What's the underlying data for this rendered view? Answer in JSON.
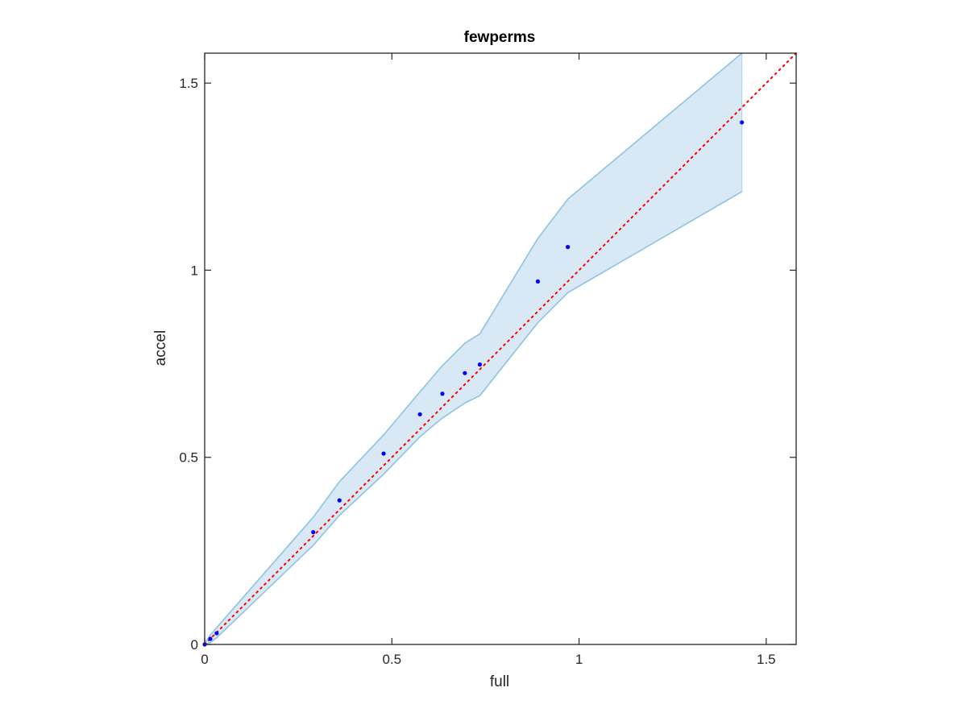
{
  "chart_data": {
    "type": "scatter",
    "title": "fewperms",
    "xlabel": "full",
    "ylabel": "accel",
    "xlim": [
      0,
      1.58
    ],
    "ylim": [
      0,
      1.58
    ],
    "xticks": [
      0,
      0.5,
      1,
      1.5
    ],
    "yticks": [
      0,
      0.5,
      1,
      1.5
    ],
    "xtick_labels": [
      "0",
      "0.5",
      "1",
      "1.5"
    ],
    "ytick_labels": [
      "0",
      "0.5",
      "1",
      "1.5"
    ],
    "grid": false,
    "colors": {
      "points": "#0000ff",
      "band_fill": "#d8e8f4",
      "band_edge": "#8ec3e3",
      "reference_line": "#ff0000",
      "axes": "#262626"
    },
    "points": {
      "x": [
        0,
        0.015,
        0.032,
        0.29,
        0.36,
        0.478,
        0.575,
        0.635,
        0.695,
        0.735,
        0.89,
        0.97,
        1.435
      ],
      "y": [
        0,
        0.015,
        0.03,
        0.3,
        0.385,
        0.51,
        0.615,
        0.67,
        0.725,
        0.748,
        0.97,
        1.062,
        1.395
      ]
    },
    "band": {
      "x": [
        0,
        0.015,
        0.032,
        0.29,
        0.36,
        0.478,
        0.575,
        0.635,
        0.695,
        0.735,
        0.89,
        0.97,
        1.435
      ],
      "upper": [
        0.003,
        0.025,
        0.045,
        0.34,
        0.435,
        0.56,
        0.675,
        0.745,
        0.805,
        0.83,
        1.085,
        1.19,
        1.58
      ],
      "lower": [
        0,
        0.005,
        0.018,
        0.265,
        0.345,
        0.455,
        0.555,
        0.605,
        0.645,
        0.665,
        0.86,
        0.94,
        1.21
      ]
    },
    "reference_line": {
      "x": [
        0,
        1.58
      ],
      "y": [
        0,
        1.58
      ],
      "style": "dotted"
    }
  }
}
